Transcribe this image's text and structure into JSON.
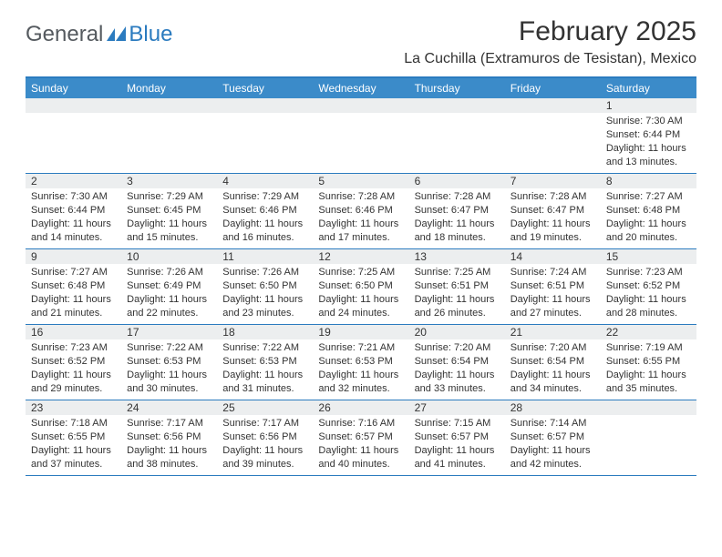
{
  "logo": {
    "text1": "General",
    "text2": "Blue"
  },
  "title": "February 2025",
  "location": "La Cuchilla (Extramuros de Tesistan), Mexico",
  "colors": {
    "header_bar": "#3b8bc9",
    "border": "#2b7bbf",
    "daynum_bg": "#eceeef",
    "text": "#333333",
    "logo_gray": "#555a5f"
  },
  "day_headers": [
    "Sunday",
    "Monday",
    "Tuesday",
    "Wednesday",
    "Thursday",
    "Friday",
    "Saturday"
  ],
  "weeks": [
    [
      {
        "n": "",
        "lines": []
      },
      {
        "n": "",
        "lines": []
      },
      {
        "n": "",
        "lines": []
      },
      {
        "n": "",
        "lines": []
      },
      {
        "n": "",
        "lines": []
      },
      {
        "n": "",
        "lines": []
      },
      {
        "n": "1",
        "lines": [
          "Sunrise: 7:30 AM",
          "Sunset: 6:44 PM",
          "Daylight: 11 hours and 13 minutes."
        ]
      }
    ],
    [
      {
        "n": "2",
        "lines": [
          "Sunrise: 7:30 AM",
          "Sunset: 6:44 PM",
          "Daylight: 11 hours and 14 minutes."
        ]
      },
      {
        "n": "3",
        "lines": [
          "Sunrise: 7:29 AM",
          "Sunset: 6:45 PM",
          "Daylight: 11 hours and 15 minutes."
        ]
      },
      {
        "n": "4",
        "lines": [
          "Sunrise: 7:29 AM",
          "Sunset: 6:46 PM",
          "Daylight: 11 hours and 16 minutes."
        ]
      },
      {
        "n": "5",
        "lines": [
          "Sunrise: 7:28 AM",
          "Sunset: 6:46 PM",
          "Daylight: 11 hours and 17 minutes."
        ]
      },
      {
        "n": "6",
        "lines": [
          "Sunrise: 7:28 AM",
          "Sunset: 6:47 PM",
          "Daylight: 11 hours and 18 minutes."
        ]
      },
      {
        "n": "7",
        "lines": [
          "Sunrise: 7:28 AM",
          "Sunset: 6:47 PM",
          "Daylight: 11 hours and 19 minutes."
        ]
      },
      {
        "n": "8",
        "lines": [
          "Sunrise: 7:27 AM",
          "Sunset: 6:48 PM",
          "Daylight: 11 hours and 20 minutes."
        ]
      }
    ],
    [
      {
        "n": "9",
        "lines": [
          "Sunrise: 7:27 AM",
          "Sunset: 6:48 PM",
          "Daylight: 11 hours and 21 minutes."
        ]
      },
      {
        "n": "10",
        "lines": [
          "Sunrise: 7:26 AM",
          "Sunset: 6:49 PM",
          "Daylight: 11 hours and 22 minutes."
        ]
      },
      {
        "n": "11",
        "lines": [
          "Sunrise: 7:26 AM",
          "Sunset: 6:50 PM",
          "Daylight: 11 hours and 23 minutes."
        ]
      },
      {
        "n": "12",
        "lines": [
          "Sunrise: 7:25 AM",
          "Sunset: 6:50 PM",
          "Daylight: 11 hours and 24 minutes."
        ]
      },
      {
        "n": "13",
        "lines": [
          "Sunrise: 7:25 AM",
          "Sunset: 6:51 PM",
          "Daylight: 11 hours and 26 minutes."
        ]
      },
      {
        "n": "14",
        "lines": [
          "Sunrise: 7:24 AM",
          "Sunset: 6:51 PM",
          "Daylight: 11 hours and 27 minutes."
        ]
      },
      {
        "n": "15",
        "lines": [
          "Sunrise: 7:23 AM",
          "Sunset: 6:52 PM",
          "Daylight: 11 hours and 28 minutes."
        ]
      }
    ],
    [
      {
        "n": "16",
        "lines": [
          "Sunrise: 7:23 AM",
          "Sunset: 6:52 PM",
          "Daylight: 11 hours and 29 minutes."
        ]
      },
      {
        "n": "17",
        "lines": [
          "Sunrise: 7:22 AM",
          "Sunset: 6:53 PM",
          "Daylight: 11 hours and 30 minutes."
        ]
      },
      {
        "n": "18",
        "lines": [
          "Sunrise: 7:22 AM",
          "Sunset: 6:53 PM",
          "Daylight: 11 hours and 31 minutes."
        ]
      },
      {
        "n": "19",
        "lines": [
          "Sunrise: 7:21 AM",
          "Sunset: 6:53 PM",
          "Daylight: 11 hours and 32 minutes."
        ]
      },
      {
        "n": "20",
        "lines": [
          "Sunrise: 7:20 AM",
          "Sunset: 6:54 PM",
          "Daylight: 11 hours and 33 minutes."
        ]
      },
      {
        "n": "21",
        "lines": [
          "Sunrise: 7:20 AM",
          "Sunset: 6:54 PM",
          "Daylight: 11 hours and 34 minutes."
        ]
      },
      {
        "n": "22",
        "lines": [
          "Sunrise: 7:19 AM",
          "Sunset: 6:55 PM",
          "Daylight: 11 hours and 35 minutes."
        ]
      }
    ],
    [
      {
        "n": "23",
        "lines": [
          "Sunrise: 7:18 AM",
          "Sunset: 6:55 PM",
          "Daylight: 11 hours and 37 minutes."
        ]
      },
      {
        "n": "24",
        "lines": [
          "Sunrise: 7:17 AM",
          "Sunset: 6:56 PM",
          "Daylight: 11 hours and 38 minutes."
        ]
      },
      {
        "n": "25",
        "lines": [
          "Sunrise: 7:17 AM",
          "Sunset: 6:56 PM",
          "Daylight: 11 hours and 39 minutes."
        ]
      },
      {
        "n": "26",
        "lines": [
          "Sunrise: 7:16 AM",
          "Sunset: 6:57 PM",
          "Daylight: 11 hours and 40 minutes."
        ]
      },
      {
        "n": "27",
        "lines": [
          "Sunrise: 7:15 AM",
          "Sunset: 6:57 PM",
          "Daylight: 11 hours and 41 minutes."
        ]
      },
      {
        "n": "28",
        "lines": [
          "Sunrise: 7:14 AM",
          "Sunset: 6:57 PM",
          "Daylight: 11 hours and 42 minutes."
        ]
      },
      {
        "n": "",
        "lines": []
      }
    ]
  ]
}
